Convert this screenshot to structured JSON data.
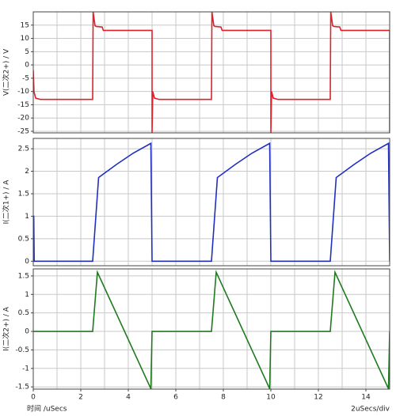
{
  "chart_data": [
    {
      "type": "line",
      "y_label": "V(二次2+) / V",
      "xlim": [
        0,
        15
      ],
      "ylim": [
        -25.6,
        20
      ],
      "yticks": [
        -25,
        -20,
        -15,
        -10,
        -5,
        0,
        5,
        10,
        15
      ],
      "grid": true,
      "series": [
        {
          "name": "V(二次2+)",
          "color": "#e0202a",
          "x": [
            0,
            0.03,
            0.1,
            0.3,
            2.5,
            2.52,
            2.6,
            2.65,
            2.9,
            2.95,
            5.0,
            5.0,
            5.03,
            5.1,
            5.3,
            7.5,
            7.52,
            7.6,
            7.65,
            7.9,
            7.95,
            10.0,
            10.0,
            10.03,
            10.1,
            10.3,
            12.5,
            12.52,
            12.6,
            12.65,
            12.9,
            12.95,
            15.0,
            15.0
          ],
          "values": [
            -2,
            -10,
            -12.5,
            -13,
            -13,
            20,
            14.8,
            14.5,
            14.3,
            13,
            13,
            -25.6,
            -10,
            -12.5,
            -13,
            -13,
            20,
            14.8,
            14.5,
            14.3,
            13,
            13,
            -25.6,
            -10,
            -12.5,
            -13,
            -13,
            20,
            14.8,
            14.5,
            14.3,
            13,
            13,
            -25.6
          ]
        }
      ]
    },
    {
      "type": "line",
      "y_label": "I(二次1+) / A",
      "xlim": [
        0,
        15
      ],
      "ylim": [
        -0.1,
        2.73
      ],
      "yticks": [
        0,
        0.5,
        1,
        1.5,
        2,
        2.5
      ],
      "grid": true,
      "series": [
        {
          "name": "I(二次1+)",
          "color": "#1f2fc0",
          "x": [
            0,
            0.02,
            0.04,
            2.5,
            2.75,
            3.5,
            4.2,
            4.95,
            5.0,
            7.5,
            7.75,
            8.5,
            9.2,
            9.95,
            10.0,
            12.5,
            12.75,
            13.5,
            14.2,
            14.95,
            15.0
          ],
          "values": [
            1,
            1,
            0,
            0,
            1.86,
            2.15,
            2.4,
            2.62,
            0,
            0,
            1.86,
            2.15,
            2.4,
            2.62,
            0,
            0,
            1.86,
            2.15,
            2.4,
            2.62,
            0
          ]
        }
      ]
    },
    {
      "type": "line",
      "y_label": "I(二次2+) / A",
      "xlim": [
        0,
        15
      ],
      "ylim": [
        -1.56,
        1.69
      ],
      "yticks": [
        -1.5,
        -1,
        -0.5,
        0,
        0.5,
        1,
        1.5
      ],
      "grid": true,
      "x_label": "时间 /uSecs",
      "scale_note": "2uSecs/div",
      "xticks": [
        0,
        2,
        4,
        6,
        8,
        10,
        12,
        14
      ],
      "series": [
        {
          "name": "I(二次2+)",
          "color": "#1e7a1e",
          "x": [
            0,
            2.5,
            2.7,
            4.95,
            5.0,
            7.5,
            7.7,
            9.95,
            10.0,
            12.5,
            12.7,
            14.95,
            15.0
          ],
          "values": [
            0,
            0,
            1.6,
            -1.55,
            0,
            0,
            1.6,
            -1.55,
            0,
            0,
            1.6,
            -1.55,
            0
          ]
        }
      ]
    }
  ]
}
